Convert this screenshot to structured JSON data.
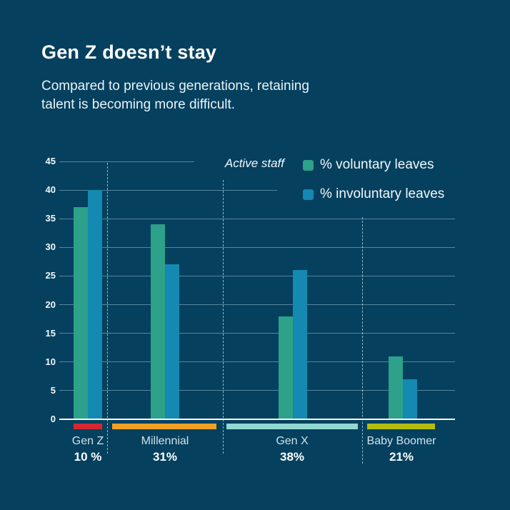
{
  "header": {
    "title": "Gen Z doesn’t stay",
    "subtitle": "Compared to previous generations, retaining talent is becoming more difficult."
  },
  "chart_data": {
    "type": "bar",
    "title": "Gen Z doesn’t stay",
    "subtitle": "Compared to previous generations, retaining talent is becoming more difficult.",
    "context_label": "Active staff",
    "categories": [
      "Gen Z",
      "Millennial",
      "Gen X",
      "Baby Boomer"
    ],
    "series": [
      {
        "name": "% voluntary leaves",
        "color": "#2da189",
        "values": [
          37,
          34,
          18,
          11
        ]
      },
      {
        "name": "% involuntary leaves",
        "color": "#1489b1",
        "values": [
          40,
          27,
          26,
          7
        ]
      }
    ],
    "active_staff_pct": [
      {
        "category": "Gen Z",
        "value": 10,
        "display": "10 %",
        "underline_color": "#d32832"
      },
      {
        "category": "Millennial",
        "value": 31,
        "display": "31%",
        "underline_color": "#f0a125"
      },
      {
        "category": "Gen X",
        "value": 38,
        "display": "38%",
        "underline_color": "#92d8d2"
      },
      {
        "category": "Baby Boomer",
        "value": 21,
        "display": "21%",
        "underline_color": "#b3bd0f"
      }
    ],
    "y_ticks": [
      0,
      5,
      10,
      15,
      20,
      25,
      30,
      35,
      40,
      45
    ],
    "ylim": [
      0,
      45
    ],
    "grid": true,
    "legend_position": "top-right"
  },
  "colors": {
    "background": "#05405e",
    "title_text": "#ffffff",
    "subtitle_text": "#e9f3f8",
    "axis_text": "#f2f8fb",
    "category_label_text": "#cfe3ed",
    "pct_text": "#ffffff",
    "gridline": "rgba(170,202,219,0.5)",
    "baseline": "#ffffff",
    "voluntary": "#2da189",
    "involuntary": "#1489b1"
  }
}
